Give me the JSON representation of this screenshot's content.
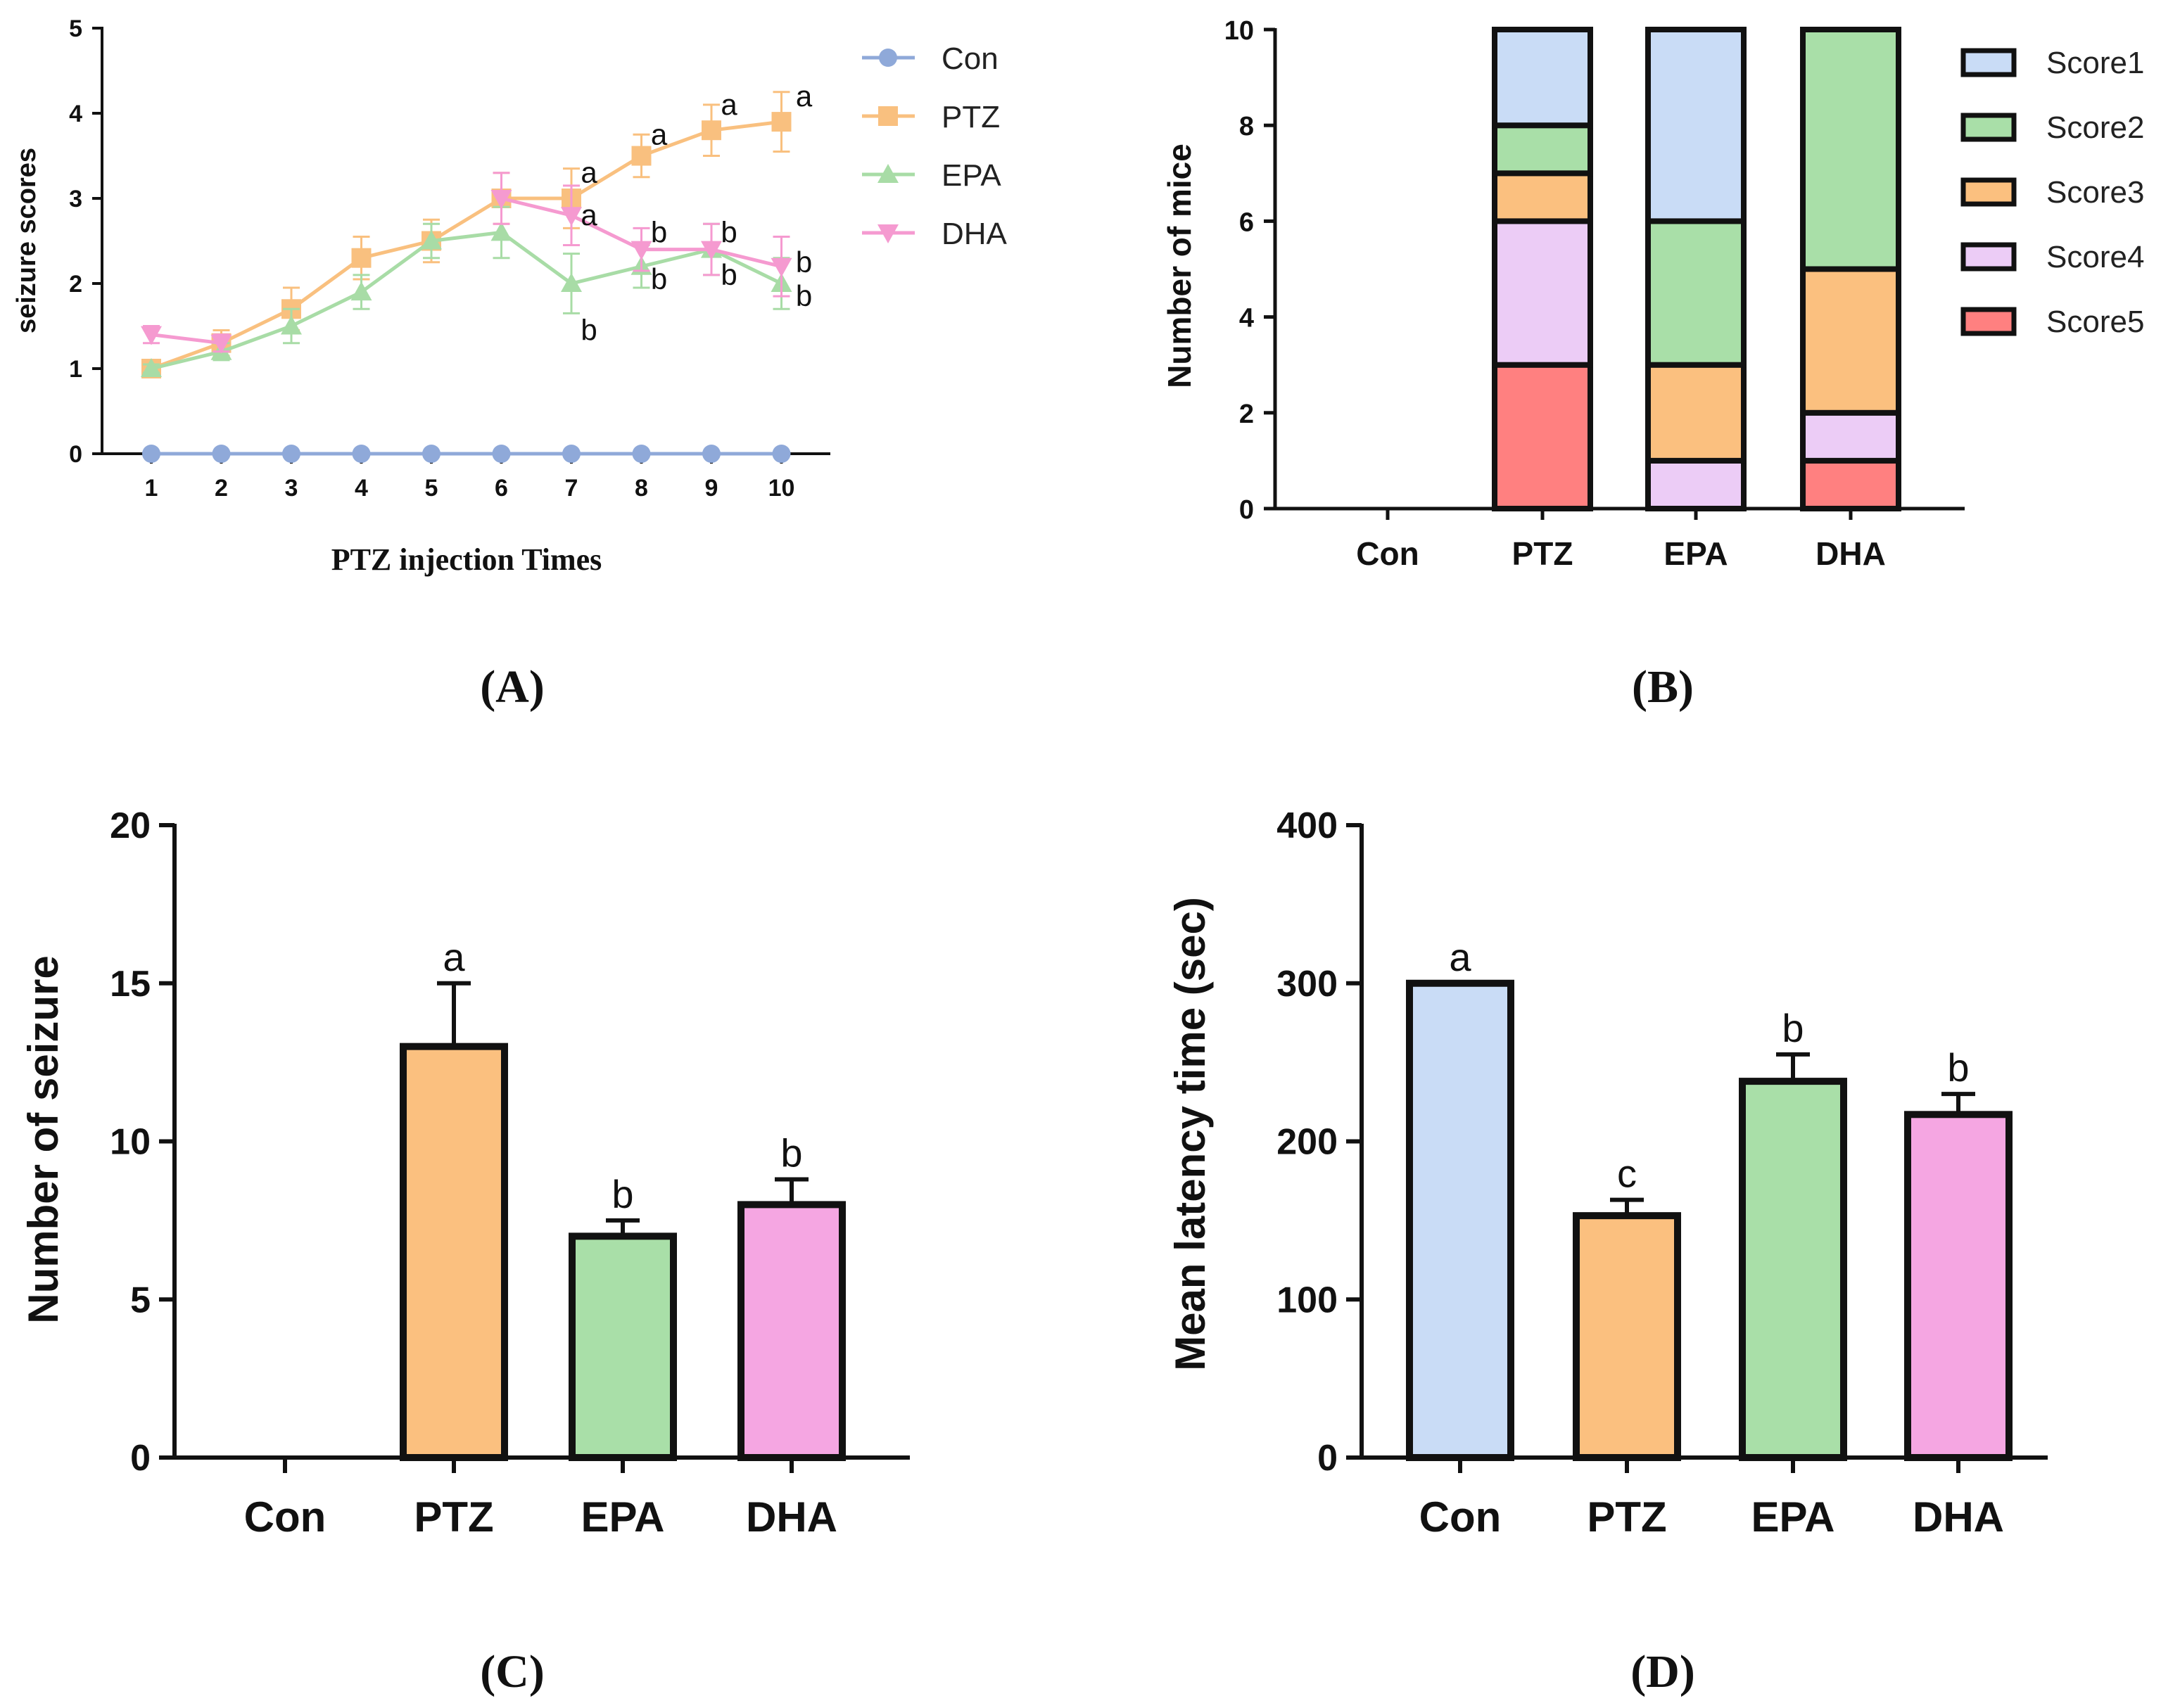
{
  "chart_data": [
    {
      "id": "A",
      "type": "line",
      "panel_label": "(A)",
      "xlabel": "PTZ injection Times",
      "ylabel": "seizure scores",
      "x": [
        1,
        2,
        3,
        4,
        5,
        6,
        7,
        8,
        9,
        10
      ],
      "xticks": [
        "1",
        "2",
        "3",
        "4",
        "5",
        "6",
        "7",
        "8",
        "9",
        "10"
      ],
      "ylim": [
        0,
        5
      ],
      "yticks": [
        "0",
        "1",
        "2",
        "3",
        "4",
        "5"
      ],
      "legend_position": "right",
      "series": [
        {
          "name": "Con",
          "color": "#8fa9d9",
          "marker": "circle",
          "values": [
            0,
            0,
            0,
            0,
            0,
            0,
            0,
            0,
            0,
            0
          ],
          "errors": [
            0,
            0,
            0,
            0,
            0,
            0,
            0,
            0,
            0,
            0
          ]
        },
        {
          "name": "PTZ",
          "color": "#f9c07f",
          "marker": "square",
          "values": [
            1.0,
            1.3,
            1.7,
            2.3,
            2.5,
            3.0,
            3.0,
            3.5,
            3.8,
            3.9
          ],
          "errors": [
            0.05,
            0.15,
            0.25,
            0.25,
            0.25,
            0.3,
            0.35,
            0.25,
            0.3,
            0.35
          ]
        },
        {
          "name": "EPA",
          "color": "#a8dca6",
          "marker": "triangle-up",
          "values": [
            1.0,
            1.2,
            1.5,
            1.9,
            2.5,
            2.6,
            2.0,
            2.2,
            2.4,
            2.0
          ],
          "errors": [
            0.05,
            0.1,
            0.2,
            0.2,
            0.2,
            0.3,
            0.35,
            0.25,
            0.3,
            0.3
          ]
        },
        {
          "name": "DHA",
          "color": "#f59ad0",
          "marker": "triangle-down",
          "values": [
            1.4,
            1.3,
            null,
            null,
            null,
            3.0,
            2.8,
            2.4,
            2.4,
            2.2
          ],
          "errors": [
            0.1,
            0.1,
            0,
            0,
            0,
            0.3,
            0.35,
            0.25,
            0.3,
            0.35
          ]
        }
      ],
      "annotations": [
        {
          "text": "a",
          "x": 7,
          "y": 3.3
        },
        {
          "text": "a",
          "x": 7,
          "y": 2.8
        },
        {
          "text": "b",
          "x": 7,
          "y": 1.45
        },
        {
          "text": "a",
          "x": 8,
          "y": 3.75
        },
        {
          "text": "b",
          "x": 8,
          "y": 2.6
        },
        {
          "text": "b",
          "x": 8,
          "y": 2.05
        },
        {
          "text": "a",
          "x": 9,
          "y": 4.1
        },
        {
          "text": "b",
          "x": 9,
          "y": 2.6
        },
        {
          "text": "b",
          "x": 9,
          "y": 2.1
        },
        {
          "text": "a",
          "x": 10,
          "y": 4.2
        },
        {
          "text": "b",
          "x": 10,
          "y": 2.25
        },
        {
          "text": "b",
          "x": 10,
          "y": 1.85
        }
      ]
    },
    {
      "id": "B",
      "type": "bar",
      "stacked": true,
      "panel_label": "(B)",
      "ylabel": "Number of mice",
      "categories": [
        "Con",
        "PTZ",
        "EPA",
        "DHA"
      ],
      "ylim": [
        0,
        10
      ],
      "yticks": [
        "0",
        "2",
        "4",
        "6",
        "8",
        "10"
      ],
      "legend_position": "right",
      "series": [
        {
          "name": "Score5",
          "color": "#ff8080",
          "values": [
            0,
            3,
            0,
            1
          ]
        },
        {
          "name": "Score4",
          "color": "#ecccf6",
          "values": [
            0,
            3,
            1,
            1
          ]
        },
        {
          "name": "Score3",
          "color": "#fbc07f",
          "values": [
            0,
            1,
            2,
            3
          ]
        },
        {
          "name": "Score2",
          "color": "#a9dfa8",
          "values": [
            0,
            1,
            3,
            5
          ]
        },
        {
          "name": "Score1",
          "color": "#c9dcf6",
          "values": [
            0,
            2,
            4,
            0
          ]
        }
      ],
      "legend_order": [
        "Score1",
        "Score2",
        "Score3",
        "Score4",
        "Score5"
      ]
    },
    {
      "id": "C",
      "type": "bar",
      "panel_label": "(C)",
      "ylabel": "Number of seizure",
      "categories": [
        "Con",
        "PTZ",
        "EPA",
        "DHA"
      ],
      "values": [
        0,
        13,
        7,
        8
      ],
      "errors": [
        0,
        2.0,
        0.5,
        0.8
      ],
      "colors": [
        "#c9dcf6",
        "#fbc07f",
        "#a9dfa8",
        "#f5a6e2"
      ],
      "letters": [
        "",
        "a",
        "b",
        "b"
      ],
      "ylim": [
        0,
        20
      ],
      "yticks": [
        "0",
        "5",
        "10",
        "15",
        "20"
      ]
    },
    {
      "id": "D",
      "type": "bar",
      "panel_label": "(D)",
      "ylabel": "Mean latency time (sec)",
      "categories": [
        "Con",
        "PTZ",
        "EPA",
        "DHA"
      ],
      "values": [
        300,
        153,
        238,
        217
      ],
      "errors": [
        0,
        10,
        17,
        13
      ],
      "colors": [
        "#c9dcf6",
        "#fbc07f",
        "#a9dfa8",
        "#f5a6e2"
      ],
      "letters": [
        "a",
        "c",
        "b",
        "b"
      ],
      "ylim": [
        0,
        400
      ],
      "yticks": [
        "0",
        "100",
        "200",
        "300",
        "400"
      ]
    }
  ]
}
